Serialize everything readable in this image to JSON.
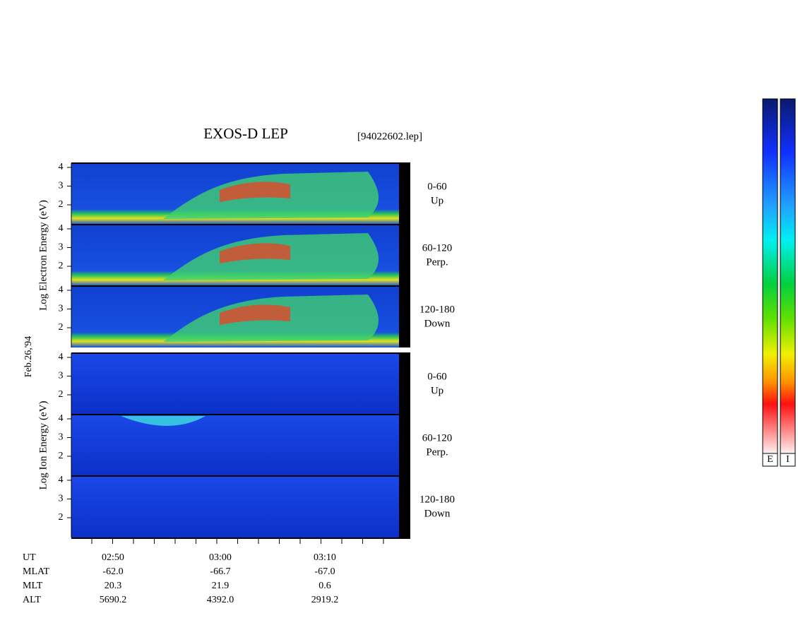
{
  "title": "EXOS-D LEP",
  "file": "[94022602.lep]",
  "date": "Feb.26,'94",
  "groups": [
    {
      "ylabel": "Log Electron Energy (eV)",
      "yticks": [
        2,
        3,
        4
      ],
      "panels": [
        {
          "range": "0-60",
          "direction": "Up"
        },
        {
          "range": "60-120",
          "direction": "Perp."
        },
        {
          "range": "120-180",
          "direction": "Down"
        }
      ]
    },
    {
      "ylabel": "Log Ion Energy (eV)",
      "yticks": [
        2,
        3,
        4
      ],
      "panels": [
        {
          "range": "0-60",
          "direction": "Up"
        },
        {
          "range": "60-120",
          "direction": "Perp."
        },
        {
          "range": "120-180",
          "direction": "Down"
        }
      ]
    }
  ],
  "table": {
    "rows": [
      [
        "UT",
        "02:50",
        "03:00",
        "03:10"
      ],
      [
        "MLAT",
        "-62.0",
        "-66.7",
        "-67.0"
      ],
      [
        "MLT",
        "20.3",
        "21.9",
        "0.6"
      ],
      [
        "ALT",
        "5690.2",
        "4392.0",
        "2919.2"
      ]
    ]
  },
  "colorbars": [
    "E",
    "I"
  ]
}
